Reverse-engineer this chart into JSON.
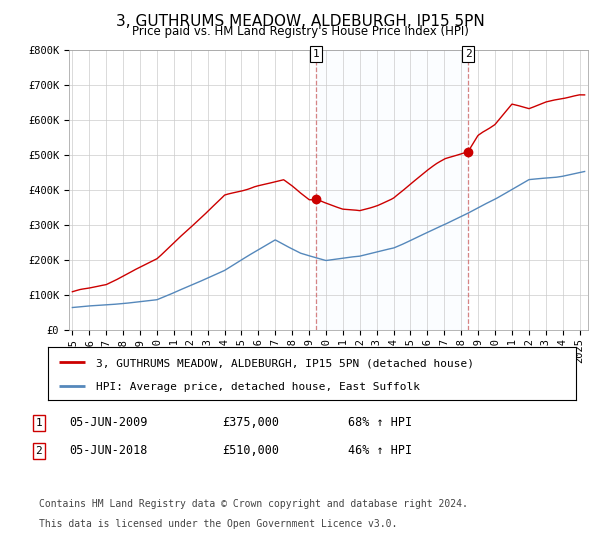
{
  "title": "3, GUTHRUMS MEADOW, ALDEBURGH, IP15 5PN",
  "subtitle": "Price paid vs. HM Land Registry's House Price Index (HPI)",
  "ylabel_ticks": [
    "£0",
    "£100K",
    "£200K",
    "£300K",
    "£400K",
    "£500K",
    "£600K",
    "£700K",
    "£800K"
  ],
  "ytick_values": [
    0,
    100000,
    200000,
    300000,
    400000,
    500000,
    600000,
    700000,
    800000
  ],
  "ylim": [
    0,
    800000
  ],
  "xlim_start": 1994.8,
  "xlim_end": 2025.5,
  "sale1_x": 2009.42,
  "sale1_y": 375000,
  "sale1_label": "05-JUN-2009",
  "sale1_price": "£375,000",
  "sale1_hpi": "68% ↑ HPI",
  "sale2_x": 2018.42,
  "sale2_y": 510000,
  "sale2_label": "05-JUN-2018",
  "sale2_price": "£510,000",
  "sale2_hpi": "46% ↑ HPI",
  "red_line_color": "#cc0000",
  "blue_line_color": "#5588bb",
  "blue_fill_color": "#ddeeff",
  "bg_color": "#ffffff",
  "grid_color": "#cccccc",
  "legend1_text": "3, GUTHRUMS MEADOW, ALDEBURGH, IP15 5PN (detached house)",
  "legend2_text": "HPI: Average price, detached house, East Suffolk",
  "footnote1": "Contains HM Land Registry data © Crown copyright and database right 2024.",
  "footnote2": "This data is licensed under the Open Government Licence v3.0.",
  "xtick_years": [
    1995,
    1996,
    1997,
    1998,
    1999,
    2000,
    2001,
    2002,
    2003,
    2004,
    2005,
    2006,
    2007,
    2008,
    2009,
    2010,
    2011,
    2012,
    2013,
    2014,
    2015,
    2016,
    2017,
    2018,
    2019,
    2020,
    2021,
    2022,
    2023,
    2024,
    2025
  ],
  "tick_fontsize": 7.5,
  "legend_fontsize": 8,
  "footnote_fontsize": 7
}
